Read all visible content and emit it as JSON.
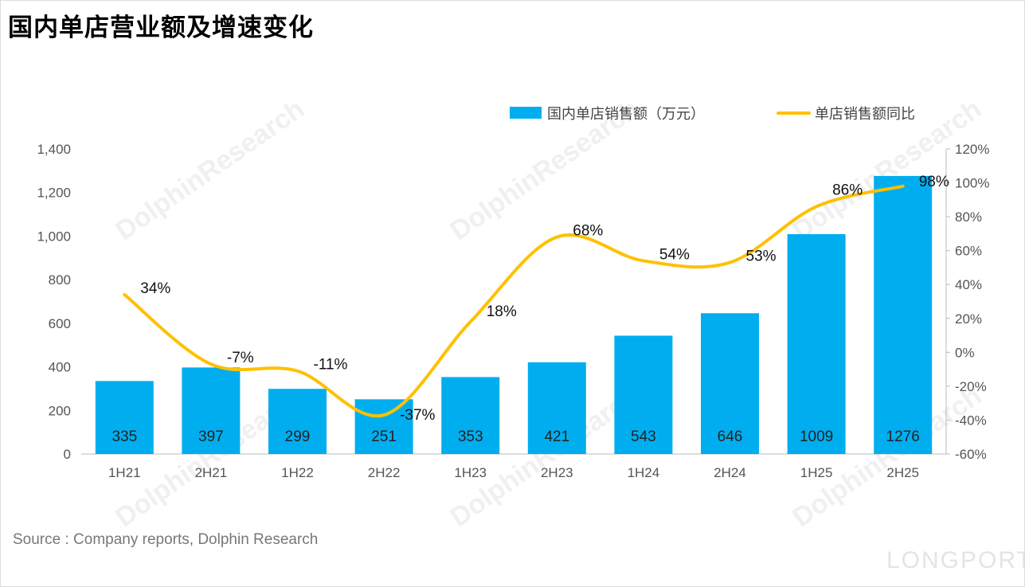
{
  "title": "国内单店营业额及增速变化",
  "source": "Source : Company reports, Dolphin Research",
  "watermark": "DolphinResearch",
  "brand": "LONGPORT",
  "chart_data": {
    "type": "bar+line",
    "categories": [
      "1H21",
      "2H21",
      "1H22",
      "2H22",
      "1H23",
      "2H23",
      "1H24",
      "2H24",
      "1H25",
      "2H25"
    ],
    "series": [
      {
        "name": "国内单店销售额（万元）",
        "type": "bar",
        "axis": "left",
        "color": "#00AEEF",
        "values": [
          335,
          397,
          299,
          251,
          353,
          421,
          543,
          646,
          1009,
          1276
        ],
        "labels": [
          "335",
          "397",
          "299",
          "251",
          "353",
          "421",
          "543",
          "646",
          "1009",
          "1276"
        ]
      },
      {
        "name": "单店销售额同比",
        "type": "line",
        "axis": "right",
        "color": "#FFC000",
        "values": [
          34,
          -7,
          -11,
          -37,
          18,
          68,
          54,
          53,
          86,
          98
        ],
        "labels": [
          "34%",
          "-7%",
          "-11%",
          "-37%",
          "18%",
          "68%",
          "54%",
          "53%",
          "86%",
          "98%"
        ]
      }
    ],
    "left_axis": {
      "ylim": [
        0,
        1400
      ],
      "ticks": [
        "0",
        "200",
        "400",
        "600",
        "800",
        "1,000",
        "1,200",
        "1,400"
      ]
    },
    "right_axis": {
      "ylim": [
        -60,
        120
      ],
      "ticks": [
        "-60%",
        "-40%",
        "-20%",
        "0%",
        "20%",
        "40%",
        "60%",
        "80%",
        "100%",
        "120%"
      ]
    },
    "grid": false,
    "legend": "top-right"
  }
}
